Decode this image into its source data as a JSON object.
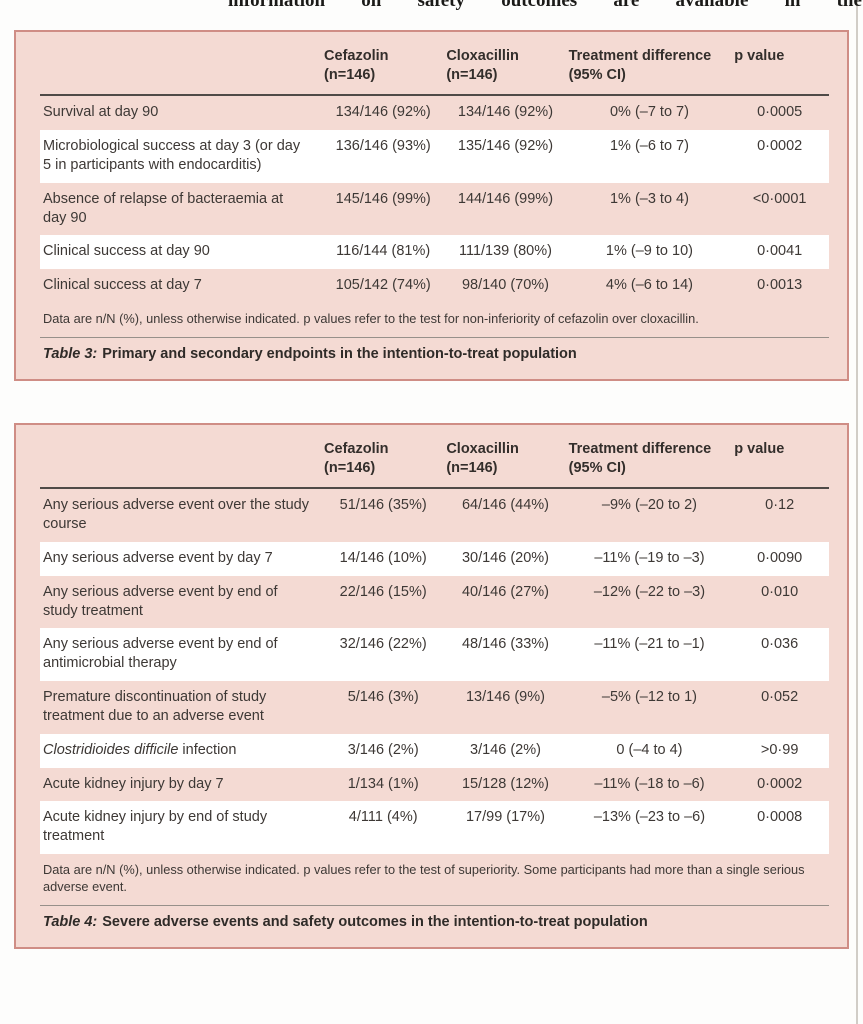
{
  "page": {
    "top_text_words": [
      "information",
      "on",
      "safety",
      "outcomes",
      "are",
      "available",
      "in",
      "the"
    ],
    "colors": {
      "table_background": "#f4dad3",
      "table_border": "#cf8d85",
      "header_rule": "#4f4a47",
      "caption_rule": "#97908a",
      "body_text": "#3d3835",
      "white_row": "#ffffff"
    }
  },
  "tables": [
    {
      "name": "table3",
      "columns": {
        "label": "",
        "cefazolin": "Cefazolin\n(n=146)",
        "cloxacillin": "Cloxacillin\n(n=146)",
        "difference": "Treatment difference\n(95% CI)",
        "p": "p value"
      },
      "rows": [
        {
          "label": "Survival at day 90",
          "cefazolin": "134/146 (92%)",
          "cloxacillin": "134/146 (92%)",
          "difference": "0% (–7 to 7)",
          "p": "0·0005"
        },
        {
          "label": "Microbiological success at day 3 (or day 5 in participants with endocarditis)",
          "cefazolin": "136/146 (93%)",
          "cloxacillin": "135/146 (92%)",
          "difference": "1% (–6 to 7)",
          "p": "0·0002"
        },
        {
          "label": "Absence of relapse of bacteraemia at day 90",
          "cefazolin": "145/146 (99%)",
          "cloxacillin": "144/146 (99%)",
          "difference": "1% (–3 to 4)",
          "p": "<0·0001"
        },
        {
          "label": "Clinical success at day 90",
          "cefazolin": "116/144 (81%)",
          "cloxacillin": "111/139 (80%)",
          "difference": "1% (–9 to 10)",
          "p": "0·0041"
        },
        {
          "label": "Clinical success at day 7",
          "cefazolin": "105/142 (74%)",
          "cloxacillin": "98/140 (70%)",
          "difference": "4% (–6 to 14)",
          "p": "0·0013"
        }
      ],
      "footnote": "Data are n/N (%), unless otherwise indicated. p values refer to the test for non-inferiority of cefazolin over cloxacillin.",
      "caption_label": "Table 3:",
      "caption_text": "Primary and secondary endpoints in the intention-to-treat population"
    },
    {
      "name": "table4",
      "columns": {
        "label": "",
        "cefazolin": "Cefazolin\n(n=146)",
        "cloxacillin": "Cloxacillin\n(n=146)",
        "difference": "Treatment difference\n(95% CI)",
        "p": "p value"
      },
      "rows": [
        {
          "label": "Any serious adverse event over the study course",
          "cefazolin": "51/146 (35%)",
          "cloxacillin": "64/146 (44%)",
          "difference": "–9% (–20 to 2)",
          "p": "0·12"
        },
        {
          "label": "Any serious adverse event by day 7",
          "cefazolin": "14/146 (10%)",
          "cloxacillin": "30/146 (20%)",
          "difference": "–11% (–19 to –3)",
          "p": "0·0090"
        },
        {
          "label": "Any serious adverse event by end of study treatment",
          "cefazolin": "22/146 (15%)",
          "cloxacillin": "40/146 (27%)",
          "difference": "–12% (–22 to –3)",
          "p": "0·010"
        },
        {
          "label": "Any serious adverse event by end of antimicrobial therapy",
          "cefazolin": "32/146 (22%)",
          "cloxacillin": "48/146 (33%)",
          "difference": "–11% (–21 to –1)",
          "p": "0·036"
        },
        {
          "label": "Premature discontinuation of study treatment due to an adverse event",
          "cefazolin": "5/146 (3%)",
          "cloxacillin": "13/146 (9%)",
          "difference": "–5% (–12 to 1)",
          "p": "0·052"
        },
        {
          "label": "Clostridioides difficile infection",
          "italic_prefix": "Clostridioides difficile",
          "cefazolin": "3/146 (2%)",
          "cloxacillin": "3/146 (2%)",
          "difference": "0 (–4 to 4)",
          "p": ">0·99"
        },
        {
          "label": "Acute kidney injury by day 7",
          "cefazolin": "1/134 (1%)",
          "cloxacillin": "15/128 (12%)",
          "difference": "–11% (–18 to –6)",
          "p": "0·0002"
        },
        {
          "label": "Acute kidney injury by end of study treatment",
          "cefazolin": "4/111 (4%)",
          "cloxacillin": "17/99 (17%)",
          "difference": "–13% (–23 to –6)",
          "p": "0·0008"
        }
      ],
      "footnote": "Data are n/N (%), unless otherwise indicated. p values refer to the test of superiority. Some participants had more than a single serious adverse event.",
      "caption_label": "Table 4:",
      "caption_text": "Severe adverse events and safety outcomes in the intention-to-treat population"
    }
  ]
}
